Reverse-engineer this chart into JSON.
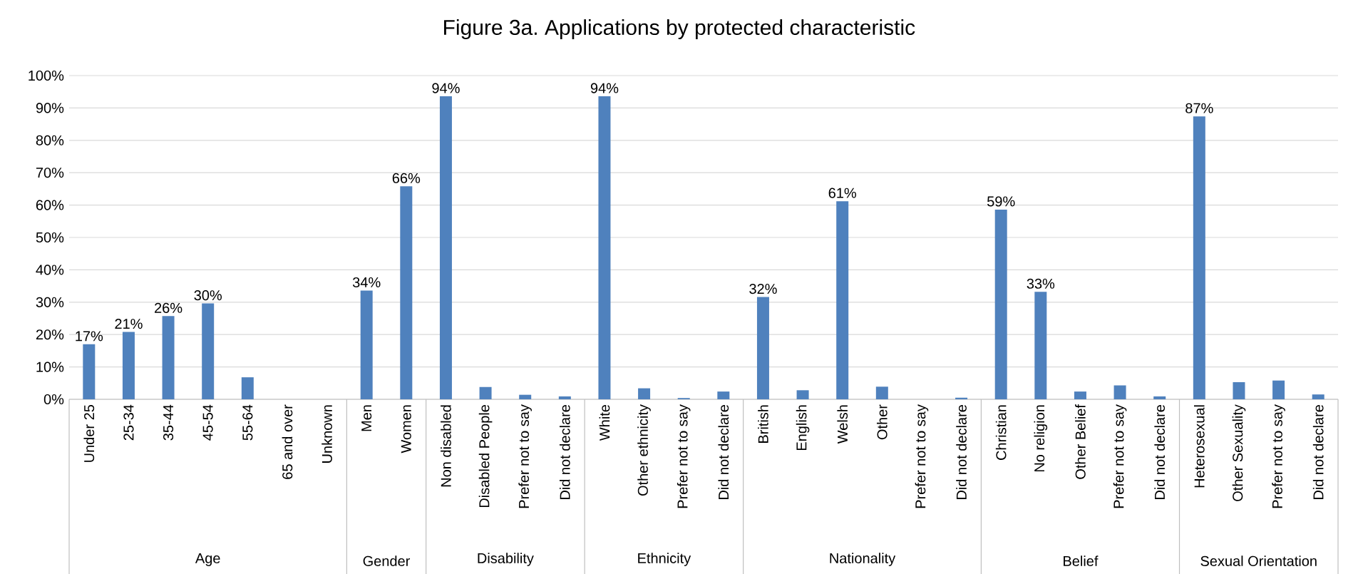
{
  "chart_data": {
    "type": "bar",
    "title": "Figure 3a. Applications by protected characteristic",
    "categories": [
      "Under 25",
      "25-34",
      "35-44",
      "45-54",
      "55-64",
      "65 and over",
      "Unknown",
      "Men",
      "Women",
      "Non disabled",
      "Disabled People",
      "Prefer not to say",
      "Did not declare",
      "White",
      "Other ethnicity",
      "Prefer not to say",
      "Did not declare",
      "British",
      "English",
      "Welsh",
      "Other",
      "Prefer not to say",
      "Did not declare",
      "Christian",
      "No religion",
      "Other Belief",
      "Prefer not to say",
      "Did not declare",
      "Heterosexual",
      "Other Sexuality",
      "Prefer not to say",
      "Did not declare"
    ],
    "values": [
      17.0,
      20.8,
      25.7,
      29.6,
      6.8,
      0,
      0,
      33.6,
      65.8,
      93.6,
      3.8,
      1.4,
      0.9,
      93.6,
      3.4,
      0.4,
      2.4,
      31.6,
      2.8,
      61.2,
      3.9,
      0,
      0.5,
      58.6,
      33.2,
      2.4,
      4.3,
      0.9,
      87.4,
      5.3,
      5.8,
      1.5
    ],
    "value_labels": [
      "17%",
      "21%",
      "26%",
      "30%",
      null,
      null,
      null,
      "34%",
      "66%",
      "94%",
      null,
      null,
      null,
      "94%",
      null,
      null,
      null,
      "32%",
      null,
      "61%",
      null,
      null,
      null,
      "59%",
      "33%",
      null,
      null,
      null,
      "87%",
      null,
      null,
      null
    ],
    "color": "#4f81bd",
    "ylim": [
      0,
      100
    ],
    "yticks": [
      {
        "value": 0,
        "label": "0%"
      },
      {
        "value": 10,
        "label": "10%"
      },
      {
        "value": 20,
        "label": "20%"
      },
      {
        "value": 30,
        "label": "30%"
      },
      {
        "value": 40,
        "label": "40%"
      },
      {
        "value": 50,
        "label": "50%"
      },
      {
        "value": 60,
        "label": "60%"
      },
      {
        "value": 70,
        "label": "70%"
      },
      {
        "value": 80,
        "label": "80%"
      },
      {
        "value": 90,
        "label": "90%"
      },
      {
        "value": 100,
        "label": "100%"
      }
    ],
    "grid": "y",
    "annotations": [
      "Age",
      "Gender",
      "Disability",
      "Ethnicity",
      "Nationality",
      "Belief",
      "Sexual Orientation"
    ]
  }
}
